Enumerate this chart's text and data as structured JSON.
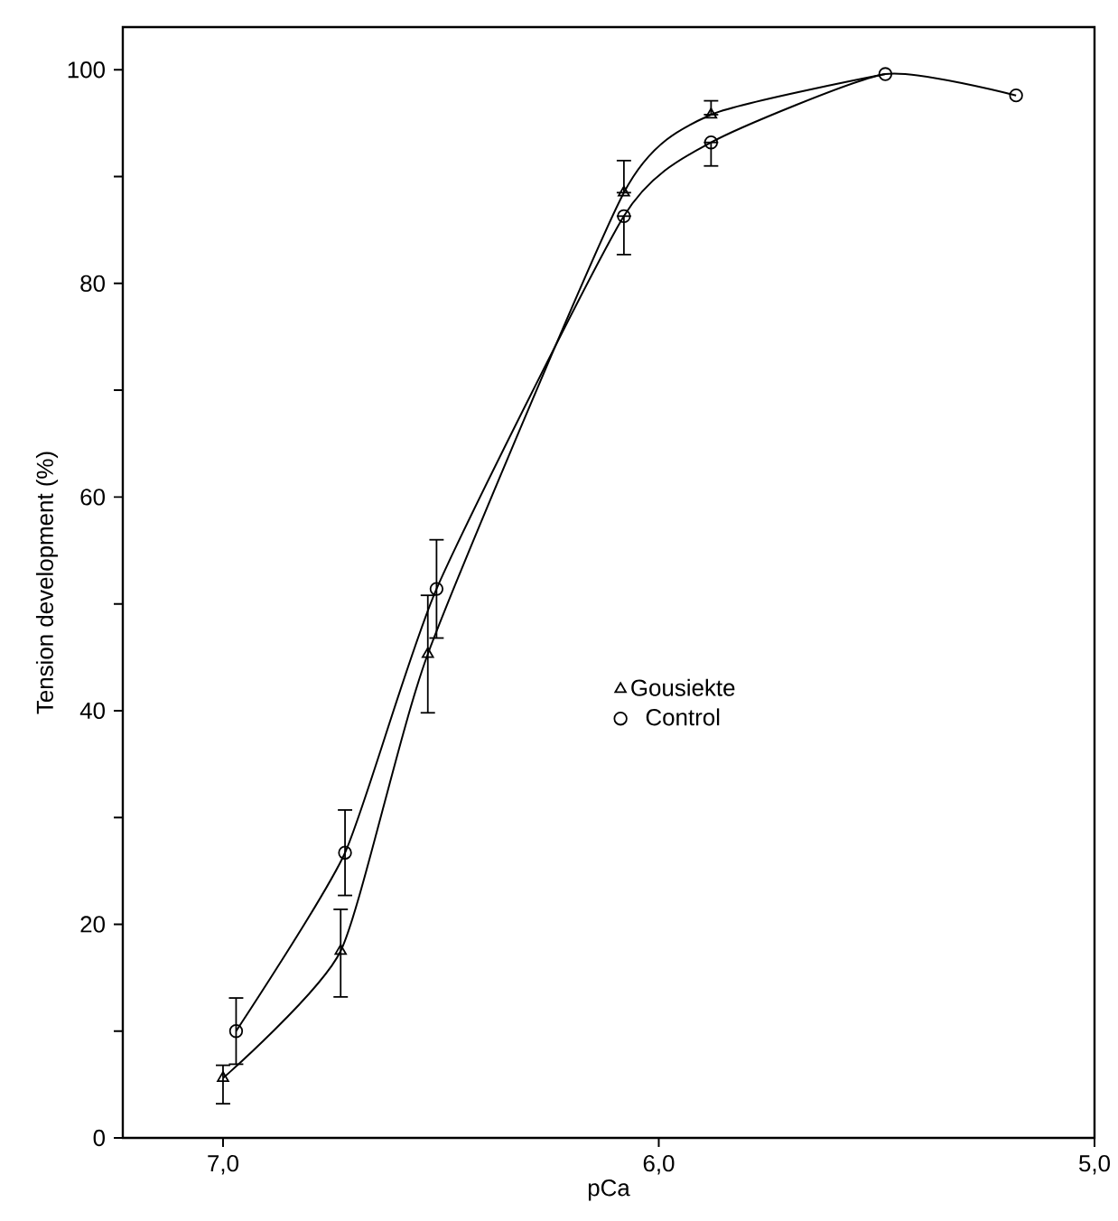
{
  "chart_data": {
    "type": "scatter",
    "xlabel": "pCa",
    "ylabel": "Tension development (%)",
    "xlim": [
      7.23,
      5.0
    ],
    "ylim": [
      0,
      104
    ],
    "xticks": [
      {
        "value": 7,
        "label": "7,0"
      },
      {
        "value": 6,
        "label": "6,0"
      },
      {
        "value": 5,
        "label": "5,0"
      }
    ],
    "yticks": [
      0,
      {
        "value": 10,
        "label": null
      },
      20,
      {
        "value": 30,
        "label": null
      },
      40,
      {
        "value": 50,
        "label": null
      },
      60,
      {
        "value": 70,
        "label": null
      },
      80,
      {
        "value": 90,
        "label": null
      },
      100
    ],
    "grid": false,
    "legend": "center",
    "series": [
      {
        "type": "line",
        "color": "#000000",
        "marker": "none",
        "x": [
          7.0,
          6.73,
          6.53,
          6.08,
          5.88,
          5.48
        ],
        "values": [
          5.6,
          17.5,
          45.3,
          88.5,
          95.8,
          99.6
        ]
      },
      {
        "type": "line",
        "color": "#000000",
        "marker": "none",
        "x": [
          6.97,
          6.72,
          6.51,
          6.08,
          5.88,
          5.48,
          5.18
        ],
        "values": [
          10.0,
          26.7,
          51.4,
          86.3,
          93.2,
          99.6,
          97.6
        ]
      },
      {
        "name": "Gousiekte",
        "color": "#000000",
        "marker": "triangle",
        "x": [
          7.0,
          6.73,
          6.53,
          6.08,
          5.88
        ],
        "values": [
          5.6,
          17.5,
          45.3,
          88.5,
          95.8
        ],
        "errors": [
          [
            3.2,
            6.8
          ],
          [
            13.2,
            21.4
          ],
          [
            39.8,
            50.8
          ],
          [
            88.5,
            91.5
          ],
          [
            95.8,
            97.1
          ]
        ]
      },
      {
        "name": "Control",
        "color": "#000000",
        "marker": "circle",
        "x": [
          6.97,
          6.72,
          6.51,
          6.08,
          5.88,
          5.48,
          5.18
        ],
        "values": [
          10.0,
          26.7,
          51.4,
          86.3,
          93.2,
          99.6,
          97.6
        ],
        "errors": [
          [
            6.9,
            13.1
          ],
          [
            22.7,
            30.7
          ],
          [
            46.8,
            56.0
          ],
          [
            82.7,
            86.3
          ],
          [
            91.0,
            93.2
          ],
          null,
          null
        ]
      }
    ]
  }
}
